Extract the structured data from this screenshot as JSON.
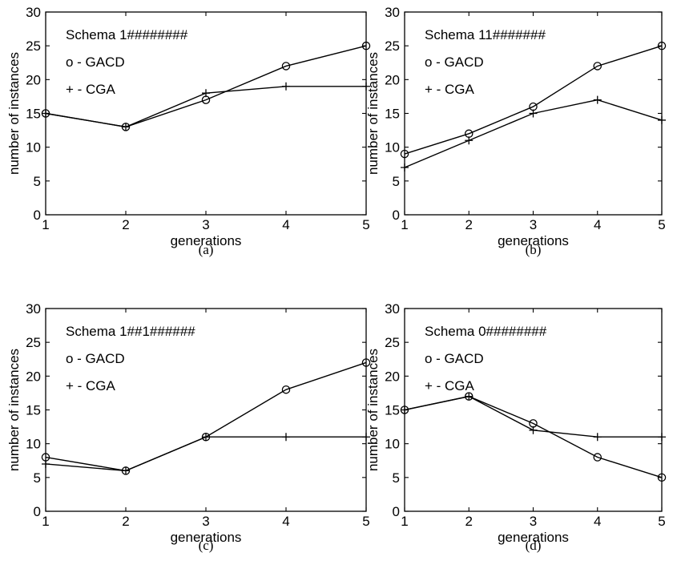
{
  "chart_data": [
    {
      "type": "line",
      "panel": "(a)",
      "annotation_lines": [
        "Schema 1########",
        "o - GACD",
        "+ - CGA"
      ],
      "xlabel": "generations",
      "ylabel": "number of instances",
      "x": [
        1,
        2,
        3,
        4,
        5
      ],
      "xlim": [
        1,
        5
      ],
      "ylim": [
        0,
        30
      ],
      "xticks": [
        1,
        2,
        3,
        4,
        5
      ],
      "yticks": [
        0,
        5,
        10,
        15,
        20,
        25,
        30
      ],
      "grid": false,
      "series": [
        {
          "marker": "circle",
          "values": [
            15,
            13,
            17,
            22,
            25
          ]
        },
        {
          "marker": "plus",
          "values": [
            15,
            13,
            18,
            19,
            19
          ]
        }
      ]
    },
    {
      "type": "line",
      "panel": "(b)",
      "annotation_lines": [
        "Schema 11#######",
        "o - GACD",
        "+ - CGA"
      ],
      "xlabel": "generations",
      "ylabel": "number of instances",
      "x": [
        1,
        2,
        3,
        4,
        5
      ],
      "xlim": [
        1,
        5
      ],
      "ylim": [
        0,
        30
      ],
      "xticks": [
        1,
        2,
        3,
        4,
        5
      ],
      "yticks": [
        0,
        5,
        10,
        15,
        20,
        25,
        30
      ],
      "grid": false,
      "series": [
        {
          "marker": "circle",
          "values": [
            9,
            12,
            16,
            22,
            25
          ]
        },
        {
          "marker": "plus",
          "values": [
            7,
            11,
            15,
            17,
            14
          ]
        }
      ]
    },
    {
      "type": "line",
      "panel": "(c)",
      "annotation_lines": [
        "Schema 1##1######",
        "o - GACD",
        "+ - CGA"
      ],
      "xlabel": "generations",
      "ylabel": "number of instances",
      "x": [
        1,
        2,
        3,
        4,
        5
      ],
      "xlim": [
        1,
        5
      ],
      "ylim": [
        0,
        30
      ],
      "xticks": [
        1,
        2,
        3,
        4,
        5
      ],
      "yticks": [
        0,
        5,
        10,
        15,
        20,
        25,
        30
      ],
      "grid": false,
      "series": [
        {
          "marker": "circle",
          "values": [
            8,
            6,
            11,
            18,
            22
          ]
        },
        {
          "marker": "plus",
          "values": [
            7,
            6,
            11,
            11,
            11
          ]
        }
      ]
    },
    {
      "type": "line",
      "panel": "(d)",
      "annotation_lines": [
        "Schema 0########",
        "o - GACD",
        "+ - CGA"
      ],
      "xlabel": "generations",
      "ylabel": "number of instances",
      "x": [
        1,
        2,
        3,
        4,
        5
      ],
      "xlim": [
        1,
        5
      ],
      "ylim": [
        0,
        30
      ],
      "xticks": [
        1,
        2,
        3,
        4,
        5
      ],
      "yticks": [
        0,
        5,
        10,
        15,
        20,
        25,
        30
      ],
      "grid": false,
      "series": [
        {
          "marker": "circle",
          "values": [
            15,
            17,
            13,
            8,
            5
          ]
        },
        {
          "marker": "plus",
          "values": [
            15,
            17,
            12,
            11,
            11
          ]
        }
      ]
    }
  ]
}
